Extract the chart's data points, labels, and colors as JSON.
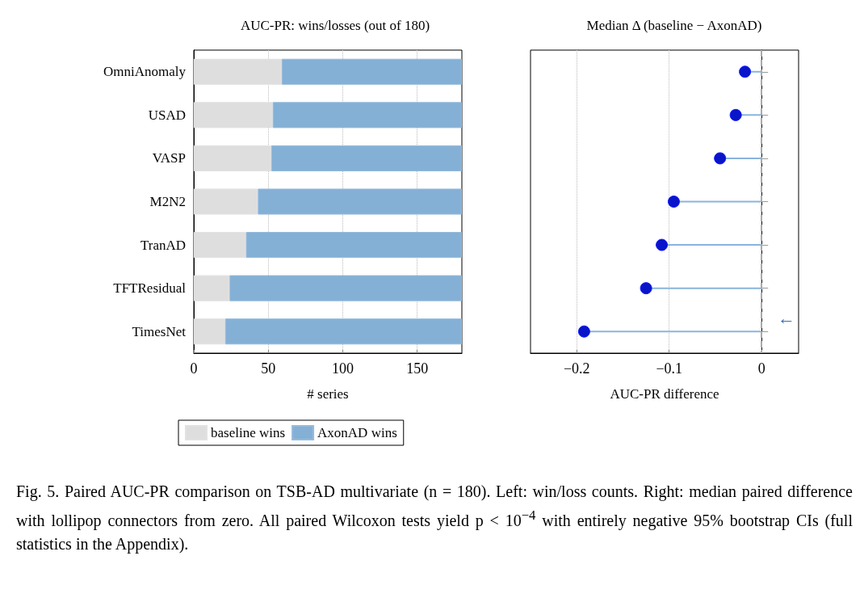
{
  "chart_data": [
    {
      "type": "bar",
      "orientation": "horizontal",
      "stacked": true,
      "title": "AUC-PR: wins/losses (out of 180)",
      "xlabel": "# series",
      "categories": [
        "OmniAnomaly",
        "USAD",
        "VASP",
        "M2N2",
        "TranAD",
        "TFTResidual",
        "TimesNet"
      ],
      "series": [
        {
          "name": "baseline wins",
          "color": "#dedede",
          "values": [
            59,
            53,
            52,
            43,
            35,
            24,
            21
          ]
        },
        {
          "name": "AxonAD wins",
          "color": "#84b0d6",
          "values": [
            121,
            127,
            128,
            137,
            145,
            156,
            159
          ]
        }
      ],
      "xlim": [
        0,
        180
      ],
      "xticks": [
        0,
        50,
        100,
        150
      ],
      "grid": "x",
      "legend": "bottom",
      "annotations": [
        "Fig. 5. Paired AUC-PR comparison on TSB-AD multivariate (n = 180). Left: win/loss counts. Right: median paired difference with lollipop connectors from zero. All paired Wilcoxon tests yield p < 10$^{−4}$ with entirely negative 95% bootstrap CIs (full statistics in the Appendix)."
      ]
    },
    {
      "type": "lollipop",
      "orientation": "horizontal",
      "title": "Median Δ (baseline − AxonAD)",
      "xlabel": "AUC-PR difference",
      "series": [
        {
          "color": "#0a14c8",
          "values": [
            -0.018,
            -0.028,
            -0.045,
            -0.095,
            -0.108,
            -0.125,
            -0.192
          ]
        }
      ],
      "xlim": [
        -0.25,
        0.04
      ],
      "xticks": [
        {
          "value": -0.2,
          "label": "−0.2"
        },
        {
          "value": -0.1,
          "label": "−0.1"
        },
        0
      ],
      "grid": "x",
      "tick_labels": "x",
      "marker": "circle",
      "ref_lines": [
        {
          "axis": "x",
          "value": 0,
          "color": "#aaaaaa",
          "line_style": "dashed"
        }
      ],
      "annotations": [
        "←"
      ]
    }
  ]
}
